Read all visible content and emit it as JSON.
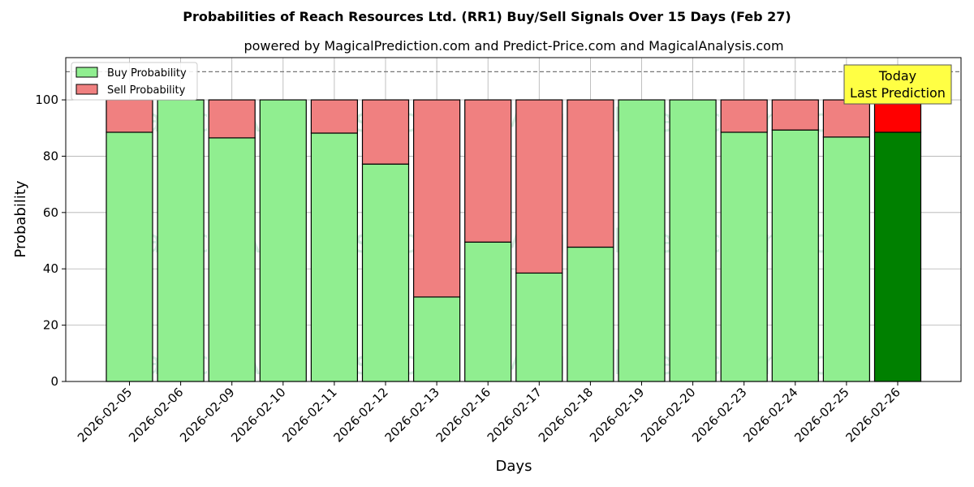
{
  "chart_data": {
    "type": "bar",
    "stacked": true,
    "title": "Probabilities of Reach Resources Ltd. (RR1) Buy/Sell Signals Over 15 Days (Feb 27)",
    "subtitle": "powered by MagicalPrediction.com and Predict-Price.com and MagicalAnalysis.com",
    "xlabel": "Days",
    "ylabel": "Probability",
    "ylim": [
      0,
      115
    ],
    "yticks": [
      0,
      20,
      40,
      60,
      80,
      100
    ],
    "reference_line": 110,
    "grid": true,
    "legend_position": "top-left",
    "categories": [
      "2026-02-05",
      "2026-02-06",
      "2026-02-09",
      "2026-02-10",
      "2026-02-11",
      "2026-02-12",
      "2026-02-13",
      "2026-02-16",
      "2026-02-17",
      "2026-02-18",
      "2026-02-19",
      "2026-02-20",
      "2026-02-23",
      "2026-02-24",
      "2026-02-25",
      "2026-02-26"
    ],
    "series": [
      {
        "name": "Buy Probability",
        "color": "#90ee90",
        "highlight_color": "#008000",
        "values": [
          88.5,
          100,
          86.5,
          100,
          88.2,
          77.2,
          30.0,
          49.5,
          38.5,
          47.7,
          100,
          100,
          88.5,
          89.3,
          86.8,
          88.5
        ]
      },
      {
        "name": "Sell Probability",
        "color": "#f08080",
        "highlight_color": "#ff0000",
        "values": [
          11.5,
          0,
          13.5,
          0,
          11.8,
          22.8,
          70.0,
          50.5,
          61.5,
          52.3,
          0,
          0,
          11.5,
          10.7,
          13.2,
          11.5
        ]
      }
    ],
    "highlight_index": 15,
    "annotation": {
      "lines": [
        "Today",
        "Last Prediction"
      ],
      "bg_color": "#ffff44"
    },
    "watermarks": [
      "MagicalAnalysis.com",
      "MagicalPrediction.com"
    ]
  }
}
